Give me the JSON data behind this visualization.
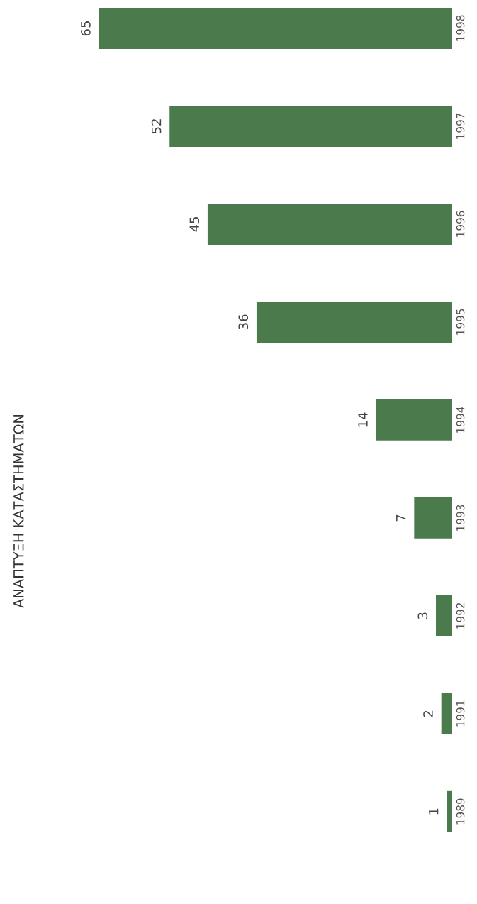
{
  "chart_data": {
    "type": "bar",
    "orientation": "horizontal",
    "title": "ΑΝΑΠΤΥΞΗ ΚΑΤΑΣΤΗΜΑΤΩΝ",
    "categories": [
      "1998",
      "1997",
      "1996",
      "1995",
      "1994",
      "1993",
      "1992",
      "1991",
      "1989"
    ],
    "values": [
      65,
      52,
      45,
      36,
      14,
      7,
      3,
      2,
      1
    ],
    "color": "#4b7a4c",
    "data_labels": true,
    "grid": false
  }
}
